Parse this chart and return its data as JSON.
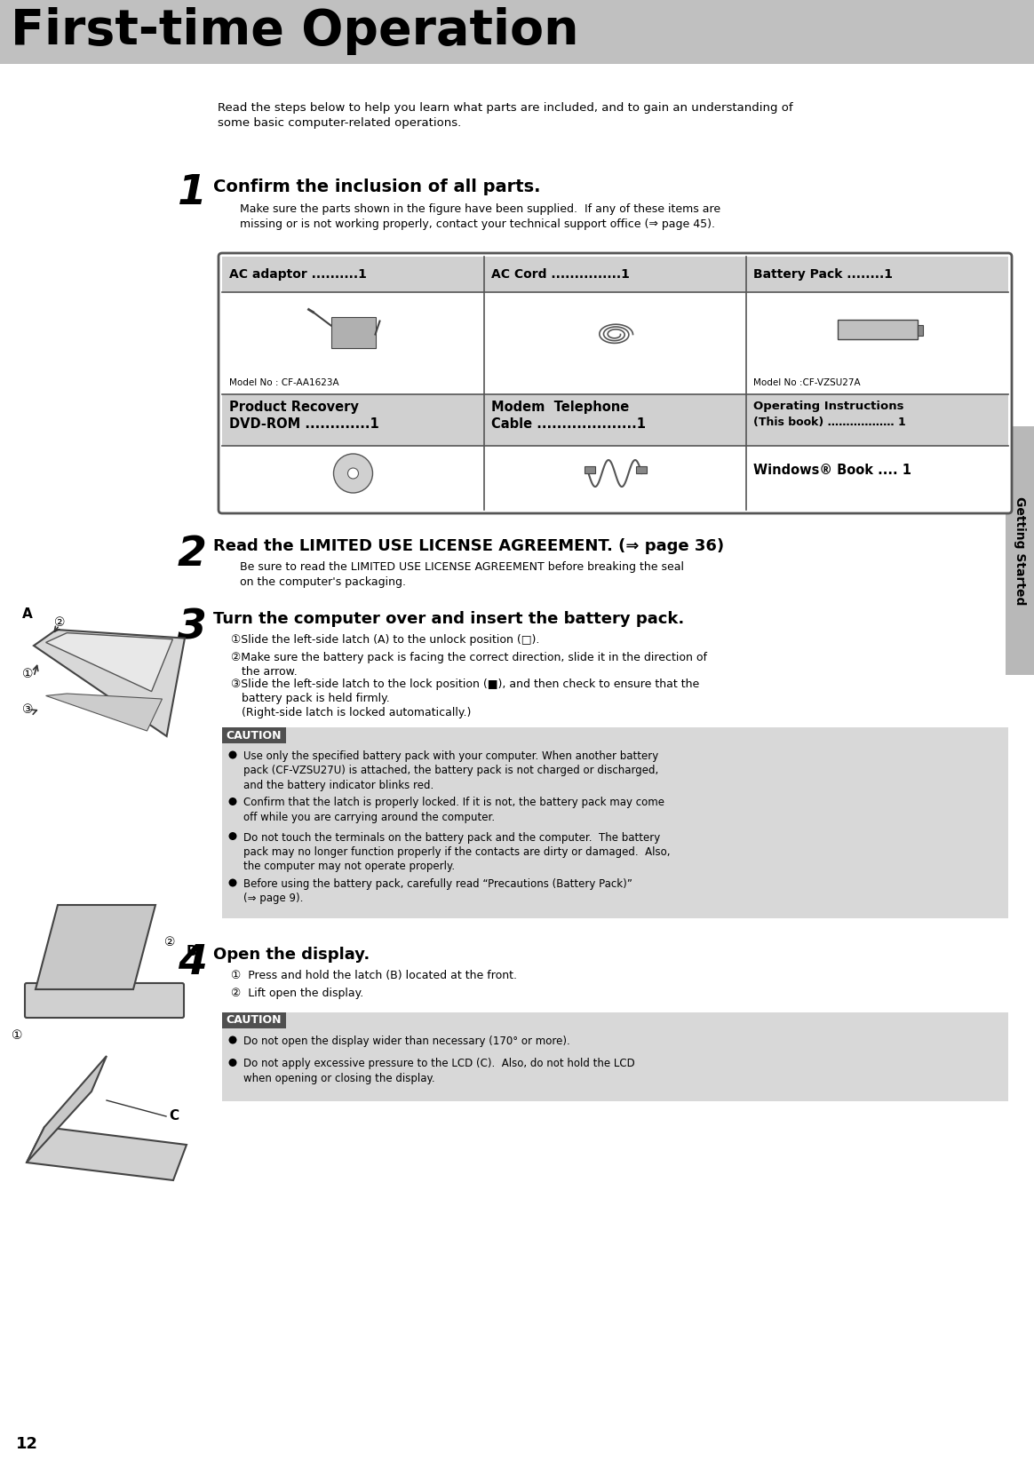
{
  "page_bg": "#ffffff",
  "header_bg": "#c0c0c0",
  "header_text": "First-time Operation",
  "header_text_color": "#000000",
  "sidebar_bg": "#b8b8b8",
  "sidebar_text": "Getting Started",
  "sidebar_text_color": "#000000",
  "page_number": "12",
  "body_bg": "#ffffff",
  "caution_bg": "#d8d8d8",
  "caution_label_bg": "#505050",
  "caution_label_text": "CAUTION",
  "caution_label_color": "#ffffff",
  "table_header_bg": "#d0d0d0",
  "table_border_color": "#555555",
  "intro_text": "Read the steps below to help you learn what parts are included, and to gain an understanding of\nsome basic computer-related operations.",
  "step1_num": "1",
  "step1_head": "Confirm the inclusion of all parts.",
  "step1_body": "Make sure the parts shown in the figure have been supplied.  If any of these items are\nmissing or is not working properly, contact your technical support office (⇒ page 45).",
  "step2_num": "2",
  "step2_head": "Read the LIMITED USE LICENSE AGREEMENT. (⇒ page 36)",
  "step2_body": "Be sure to read the LIMITED USE LICENSE AGREEMENT before breaking the seal\non the computer's packaging.",
  "step3_num": "3",
  "step3_head": "Turn the computer over and insert the battery pack.",
  "step3_body1": "①Slide the left-side latch (A) to the unlock position (□).",
  "step3_body2": "②Make sure the battery pack is facing the correct direction, slide it in the direction of\n   the arrow.",
  "step3_body3": "③Slide the left-side latch to the lock position (■), and then check to ensure that the\n   battery pack is held firmly.\n   (Right-side latch is locked automatically.)",
  "step4_num": "4",
  "step4_head": "Open the display.",
  "step4_body1": "①  Press and hold the latch (B) located at the front.",
  "step4_body2": "②  Lift open the display.",
  "caution1_bullets": [
    "Use only the specified battery pack with your computer. When another battery\npack (CF-VZSU27U) is attached, the battery pack is not charged or discharged,\nand the battery indicator blinks red.",
    "Confirm that the latch is properly locked. If it is not, the battery pack may come\noff while you are carrying around the computer.",
    "Do not touch the terminals on the battery pack and the computer.  The battery\npack may no longer function properly if the contacts are dirty or damaged.  Also,\nthe computer may not operate properly.",
    "Before using the battery pack, carefully read “Precautions (Battery Pack)”\n(⇒ page 9)."
  ],
  "caution2_bullets": [
    "Do not open the display wider than necessary (170° or more).",
    "Do not apply excessive pressure to the LCD (C).  Also, do not hold the LCD\nwhen opening or closing the display."
  ],
  "table_col1_header": "AC adaptor ..........1",
  "table_col2_header": "AC Cord ...............1",
  "table_col3_header": "Battery Pack ........1",
  "table_row2_col1_l1": "Product Recovery",
  "table_row2_col1_l2": "DVD-ROM .............1",
  "table_row2_col2_l1": "Modem  Telephone",
  "table_row2_col2_l2": "Cable ....................1",
  "table_row2_col3_l1": "Operating Instructions",
  "table_row2_col3_l2": "(This book) ……………… 1",
  "table_bottom_col3": "Windows® Book .... 1",
  "model_no1": "Model No : CF-AA1623A",
  "model_no2": "Model No :CF-VZSU27A"
}
